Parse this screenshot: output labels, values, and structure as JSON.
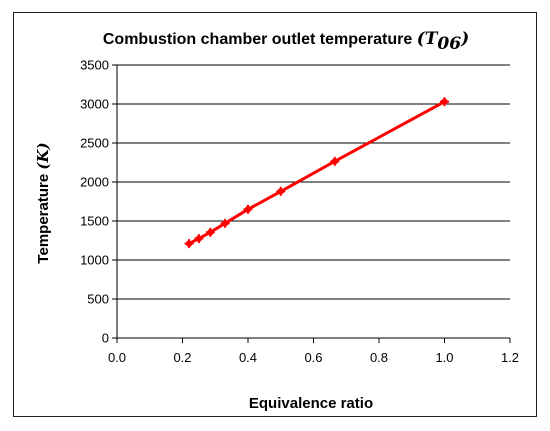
{
  "chart_data": {
    "type": "line",
    "title": "Combustion chamber outlet temperature",
    "title_var_open": "(",
    "title_var_base": "T",
    "title_var_sub": "06",
    "title_var_close": ")",
    "xlabel": "Equivalence ratio",
    "ylabel": "Temperature",
    "ylabel_var": "(K)",
    "xlim": [
      0,
      1.2
    ],
    "ylim": [
      0,
      3500
    ],
    "x_ticks": [
      "0.0",
      "0.2",
      "0.4",
      "0.6",
      "0.8",
      "1.0",
      "1.2"
    ],
    "y_ticks": [
      "0",
      "500",
      "1000",
      "1500",
      "2000",
      "2500",
      "3000",
      "3500"
    ],
    "grid": "horizontal",
    "series": [
      {
        "color": "#ff0000",
        "x": [
          0.22,
          0.25,
          0.285,
          0.33,
          0.4,
          0.5,
          0.665,
          1.0
        ],
        "y": [
          1210,
          1275,
          1355,
          1470,
          1650,
          1880,
          2265,
          3030
        ]
      }
    ]
  }
}
